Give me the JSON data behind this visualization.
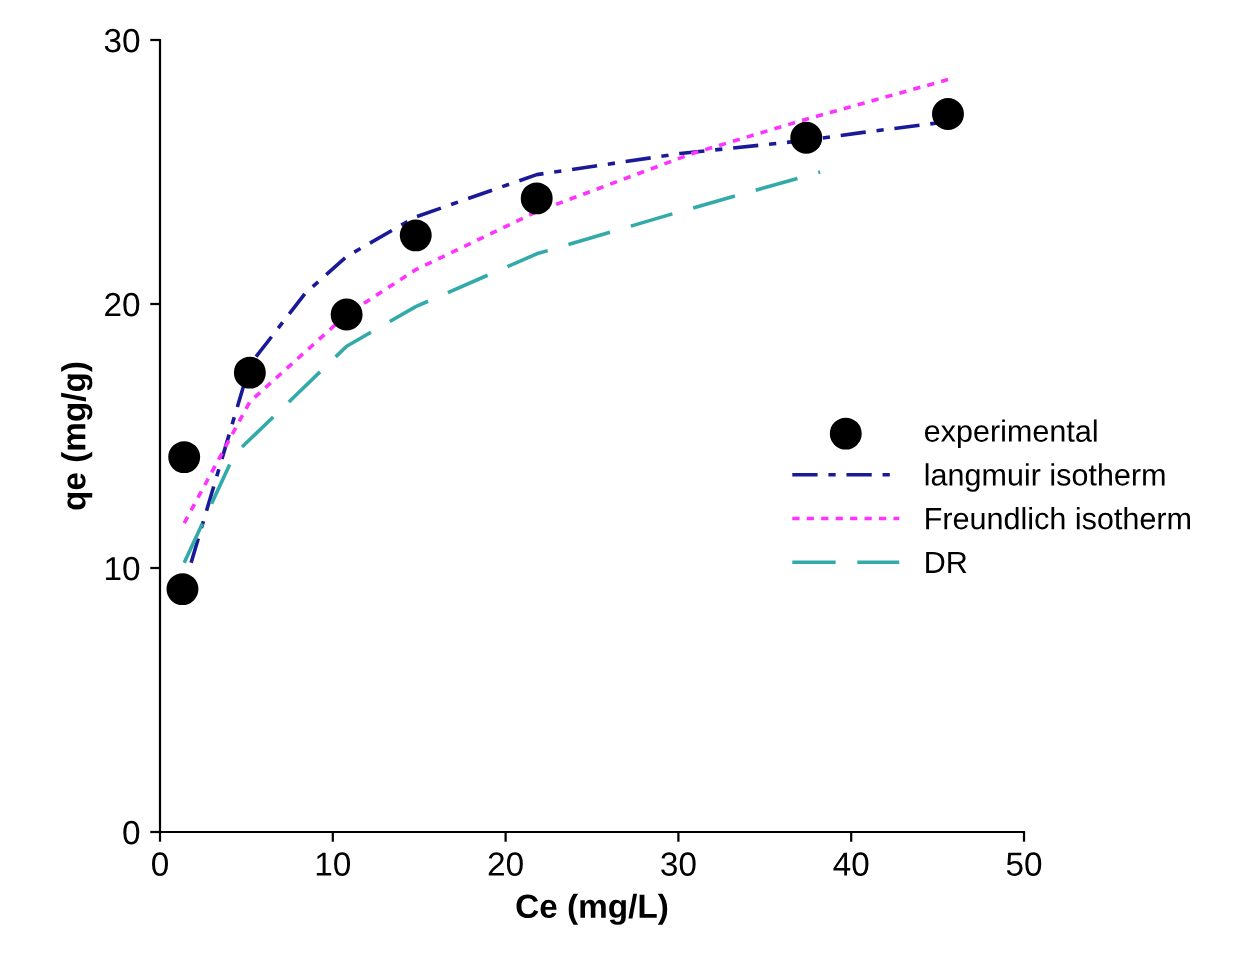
{
  "chart_data": {
    "type": "scatter",
    "xlabel": "Ce (mg/L)",
    "ylabel": "qe (mg/g)",
    "xlim": [
      0,
      50
    ],
    "xticks": [
      0,
      10,
      20,
      30,
      40,
      50
    ],
    "ylim": [
      0,
      30
    ],
    "yticks": [
      0,
      10,
      20,
      30
    ],
    "grid": false,
    "legend": "right",
    "series": [
      {
        "name": "experimental",
        "color": "#000000",
        "marker": "circle",
        "x": [
          1.4,
          1.3,
          5.2,
          10.8,
          14.8,
          21.8,
          37.4,
          45.6
        ],
        "values": [
          14.2,
          9.2,
          17.4,
          19.6,
          22.6,
          24.0,
          26.3,
          27.2
        ]
      },
      {
        "name": "langmuir isotherm",
        "type": "line",
        "color": "#1a1a99",
        "line_style": "dashdot",
        "x": [
          1.8,
          5.2,
          8.4,
          10.8,
          14.8,
          21.8,
          30.1,
          37.4,
          40.7,
          45.5
        ],
        "values": [
          10.2,
          17.7,
          20.4,
          21.8,
          23.3,
          24.9,
          25.7,
          26.2,
          26.5,
          26.9
        ]
      },
      {
        "name": "Freundlich isotherm",
        "type": "line",
        "color": "#ff33ff",
        "line_style": "dotted",
        "x": [
          1.4,
          5.2,
          10.8,
          14.8,
          21.8,
          30.8,
          37.4,
          45.6
        ],
        "values": [
          11.7,
          16.3,
          19.6,
          21.3,
          23.5,
          25.7,
          27.0,
          28.5
        ]
      },
      {
        "name": "DR",
        "type": "line",
        "color": "#33aaaa",
        "line_style": "dashed",
        "x": [
          1.4,
          4.3,
          10.8,
          14.8,
          21.8,
          30.1,
          38.2
        ],
        "values": [
          10.2,
          14.3,
          18.4,
          19.9,
          21.9,
          23.5,
          25.0
        ]
      }
    ]
  }
}
